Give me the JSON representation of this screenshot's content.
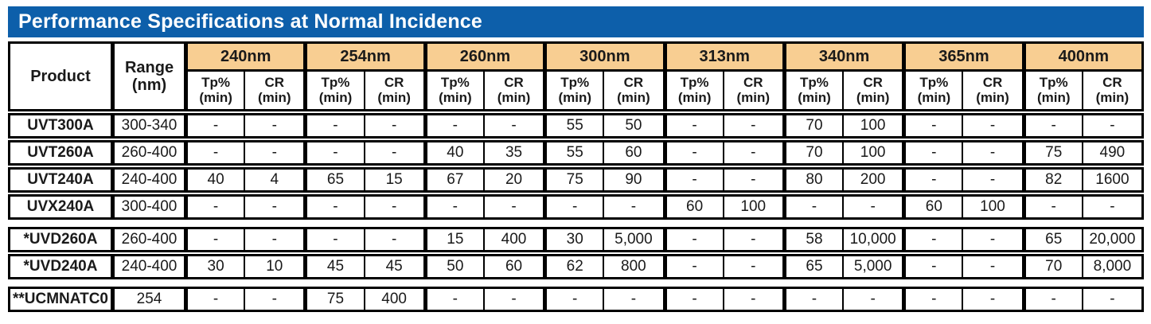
{
  "title": "Performance Specifications at Normal Incidence",
  "colors": {
    "title_bar_bg": "#0D5FAA",
    "title_text": "#FFFFFF",
    "wavelength_header_bg": "#F8CE92",
    "border": "#000000",
    "cell_bg": "#FFFFFF"
  },
  "table": {
    "headers": {
      "product": "Product",
      "range_line1": "Range",
      "range_line2": "(nm)",
      "tp": "Tp%",
      "cr": "CR",
      "min": "(min)"
    },
    "wavelengths": [
      "240nm",
      "254nm",
      "260nm",
      "300nm",
      "313nm",
      "340nm",
      "365nm",
      "400nm"
    ],
    "groups": [
      {
        "rows": [
          {
            "product": "UVT300A",
            "range": "300-340",
            "values": [
              "-",
              "-",
              "-",
              "-",
              "-",
              "-",
              "55",
              "50",
              "-",
              "-",
              "70",
              "100",
              "-",
              "-",
              "-",
              "-"
            ]
          },
          {
            "product": "UVT260A",
            "range": "260-400",
            "values": [
              "-",
              "-",
              "-",
              "-",
              "40",
              "35",
              "55",
              "60",
              "-",
              "-",
              "70",
              "100",
              "-",
              "-",
              "75",
              "490"
            ]
          },
          {
            "product": "UVT240A",
            "range": "240-400",
            "values": [
              "40",
              "4",
              "65",
              "15",
              "67",
              "20",
              "75",
              "90",
              "-",
              "-",
              "80",
              "200",
              "-",
              "-",
              "82",
              "1600"
            ]
          },
          {
            "product": "UVX240A",
            "range": "300-400",
            "values": [
              "-",
              "-",
              "-",
              "-",
              "-",
              "-",
              "-",
              "-",
              "60",
              "100",
              "-",
              "-",
              "60",
              "100",
              "-",
              "-"
            ]
          }
        ]
      },
      {
        "rows": [
          {
            "product": "*UVD260A",
            "range": "260-400",
            "values": [
              "-",
              "-",
              "-",
              "-",
              "15",
              "400",
              "30",
              "5,000",
              "-",
              "-",
              "58",
              "10,000",
              "-",
              "-",
              "65",
              "20,000"
            ]
          },
          {
            "product": "*UVD240A",
            "range": "240-400",
            "values": [
              "30",
              "10",
              "45",
              "45",
              "50",
              "60",
              "62",
              "800",
              "-",
              "-",
              "65",
              "5,000",
              "-",
              "-",
              "70",
              "8,000"
            ]
          }
        ]
      },
      {
        "rows": [
          {
            "product": "**UCMNATC0",
            "range": "254",
            "values": [
              "-",
              "-",
              "75",
              "400",
              "-",
              "-",
              "-",
              "-",
              "-",
              "-",
              "-",
              "-",
              "-",
              "-",
              "-",
              "-"
            ]
          }
        ]
      }
    ]
  }
}
